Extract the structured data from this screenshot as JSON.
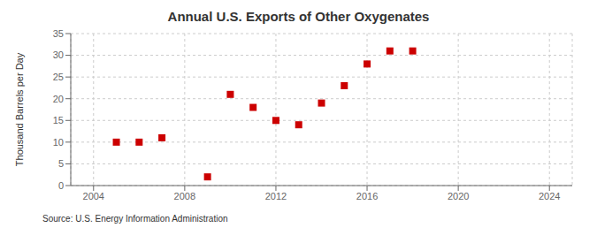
{
  "chart_data": {
    "type": "scatter",
    "title": "Annual U.S. Exports of Other Oxygenates",
    "ylabel": "Thousand Barrels per Day",
    "source": "Source: U.S. Energy Information Administration",
    "x": [
      2005,
      2006,
      2007,
      2009,
      2010,
      2011,
      2012,
      2013,
      2014,
      2015,
      2016,
      2017,
      2018
    ],
    "values": [
      10,
      10,
      11,
      2,
      21,
      18,
      15,
      14,
      19,
      23,
      28,
      31,
      31
    ],
    "xlim": [
      2003,
      2025
    ],
    "ylim": [
      0,
      35
    ],
    "xticks": [
      2004,
      2008,
      2012,
      2016,
      2020,
      2024
    ],
    "yticks": [
      0,
      5,
      10,
      15,
      20,
      25,
      30,
      35
    ],
    "color": "#cc0000",
    "marker": "square",
    "grid": true
  }
}
